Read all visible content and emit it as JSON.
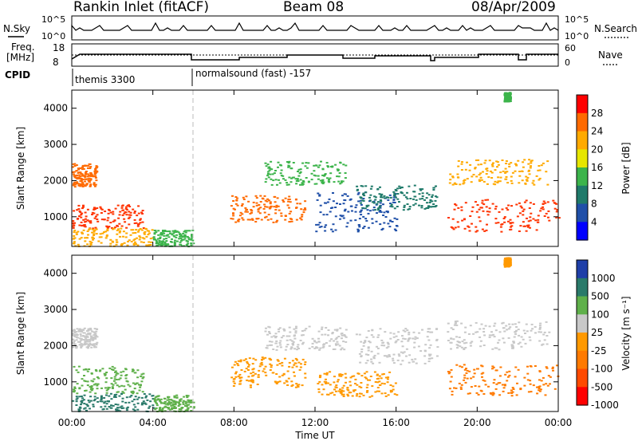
{
  "header": {
    "station": "Rankin Inlet (fitACF)",
    "beam": "Beam 08",
    "date": "08/Apr/2009"
  },
  "status_panels": {
    "nsky_label": "N.Sky",
    "nsky_ticks": [
      "10^5",
      "10^0"
    ],
    "nsearch_label": "N.Search",
    "nsearch_ticks": [
      "10^5",
      "10^0"
    ],
    "freq_label_line1": "Freq.",
    "freq_label_line2": "[MHz]",
    "freq_ticks": [
      "18",
      "8"
    ],
    "nave_label": "Nave",
    "nave_ticks": [
      "60",
      "0"
    ],
    "cpid_label": "CPID",
    "cpid_segments": [
      "themis 3300",
      "normalsound (fast) -157"
    ]
  },
  "chart_data": [
    {
      "type": "heatmap",
      "panel": "power",
      "ylabel": "Slant Range [km]",
      "xlabel": "",
      "x_ticks": [
        "00:00",
        "04:00",
        "08:00",
        "12:00",
        "16:00",
        "20:00",
        "00:00"
      ],
      "y_ticks": [
        "1000",
        "2000",
        "3000",
        "4000"
      ],
      "xlim": [
        0,
        24
      ],
      "ylim": [
        180,
        4500
      ],
      "colorbar": {
        "label": "Power [dB]",
        "ticks": [
          "28",
          "24",
          "20",
          "16",
          "12",
          "8",
          "4"
        ],
        "colors": [
          "#ff0000",
          "#ff6a00",
          "#ffaa00",
          "#e6e600",
          "#3cb44b",
          "#1f7a6a",
          "#1f4fa8",
          "#0000ff"
        ]
      },
      "regions": [
        {
          "t0": 0.0,
          "t1": 1.2,
          "r0": 1850,
          "r1": 2500,
          "color": "#ff6a00"
        },
        {
          "t0": 0.0,
          "t1": 3.5,
          "r0": 700,
          "r1": 1350,
          "color": "#ff3300"
        },
        {
          "t0": 0.0,
          "t1": 4.0,
          "r0": 200,
          "r1": 700,
          "color": "#ffaa00"
        },
        {
          "t0": 4.0,
          "t1": 6.0,
          "r0": 200,
          "r1": 650,
          "color": "#3cb44b"
        },
        {
          "t0": 7.8,
          "t1": 11.5,
          "r0": 850,
          "r1": 1600,
          "color": "#ff6a00"
        },
        {
          "t0": 9.5,
          "t1": 13.5,
          "r0": 1900,
          "r1": 2550,
          "color": "#3cb44b"
        },
        {
          "t0": 12.0,
          "t1": 16.0,
          "r0": 600,
          "r1": 1700,
          "color": "#1f4fa8"
        },
        {
          "t0": 14.0,
          "t1": 18.0,
          "r0": 1200,
          "r1": 1900,
          "color": "#1f7a6a"
        },
        {
          "t0": 18.5,
          "t1": 24.0,
          "r0": 600,
          "r1": 1500,
          "color": "#ff3300"
        },
        {
          "t0": 18.5,
          "t1": 23.5,
          "r0": 1900,
          "r1": 2600,
          "color": "#ffaa00"
        },
        {
          "t0": 21.3,
          "t1": 21.6,
          "r0": 4200,
          "r1": 4450,
          "color": "#3cb44b"
        }
      ]
    },
    {
      "type": "heatmap",
      "panel": "velocity",
      "ylabel": "Slant Range [km]",
      "xlabel": "Time UT",
      "x_ticks": [
        "00:00",
        "04:00",
        "08:00",
        "12:00",
        "16:00",
        "20:00",
        "00:00"
      ],
      "y_ticks": [
        "1000",
        "2000",
        "3000",
        "4000"
      ],
      "xlim": [
        0,
        24
      ],
      "ylim": [
        180,
        4500
      ],
      "colorbar": {
        "label": "Velocity [m s⁻¹]",
        "ticks": [
          "1000",
          "500",
          "100",
          "25",
          "-25",
          "-100",
          "-500",
          "-1000"
        ],
        "colors": [
          "#1f3fa8",
          "#2a7a6a",
          "#5fb04a",
          "#c8c8c8",
          "#ff9900",
          "#ff7a00",
          "#ff4a00",
          "#ff0000"
        ]
      },
      "regions": [
        {
          "t0": 0.0,
          "t1": 1.2,
          "r0": 1950,
          "r1": 2500,
          "color": "#c8c8c8"
        },
        {
          "t0": 0.0,
          "t1": 3.5,
          "r0": 700,
          "r1": 1450,
          "color": "#5fb04a"
        },
        {
          "t0": 0.0,
          "t1": 4.0,
          "r0": 200,
          "r1": 700,
          "color": "#2a7a6a"
        },
        {
          "t0": 4.0,
          "t1": 6.0,
          "r0": 200,
          "r1": 650,
          "color": "#5fb04a"
        },
        {
          "t0": 7.8,
          "t1": 11.5,
          "r0": 850,
          "r1": 1700,
          "color": "#ff9900"
        },
        {
          "t0": 9.5,
          "t1": 13.5,
          "r0": 1900,
          "r1": 2550,
          "color": "#c8c8c8"
        },
        {
          "t0": 12.0,
          "t1": 16.0,
          "r0": 600,
          "r1": 1300,
          "color": "#ff9900"
        },
        {
          "t0": 14.0,
          "t1": 18.0,
          "r0": 1500,
          "r1": 2500,
          "color": "#c8c8c8"
        },
        {
          "t0": 18.5,
          "t1": 24.0,
          "r0": 600,
          "r1": 1500,
          "color": "#ff7a00"
        },
        {
          "t0": 18.5,
          "t1": 23.5,
          "r0": 1900,
          "r1": 2700,
          "color": "#c8c8c8"
        },
        {
          "t0": 21.3,
          "t1": 21.6,
          "r0": 4200,
          "r1": 4450,
          "color": "#ff9900"
        }
      ]
    }
  ]
}
